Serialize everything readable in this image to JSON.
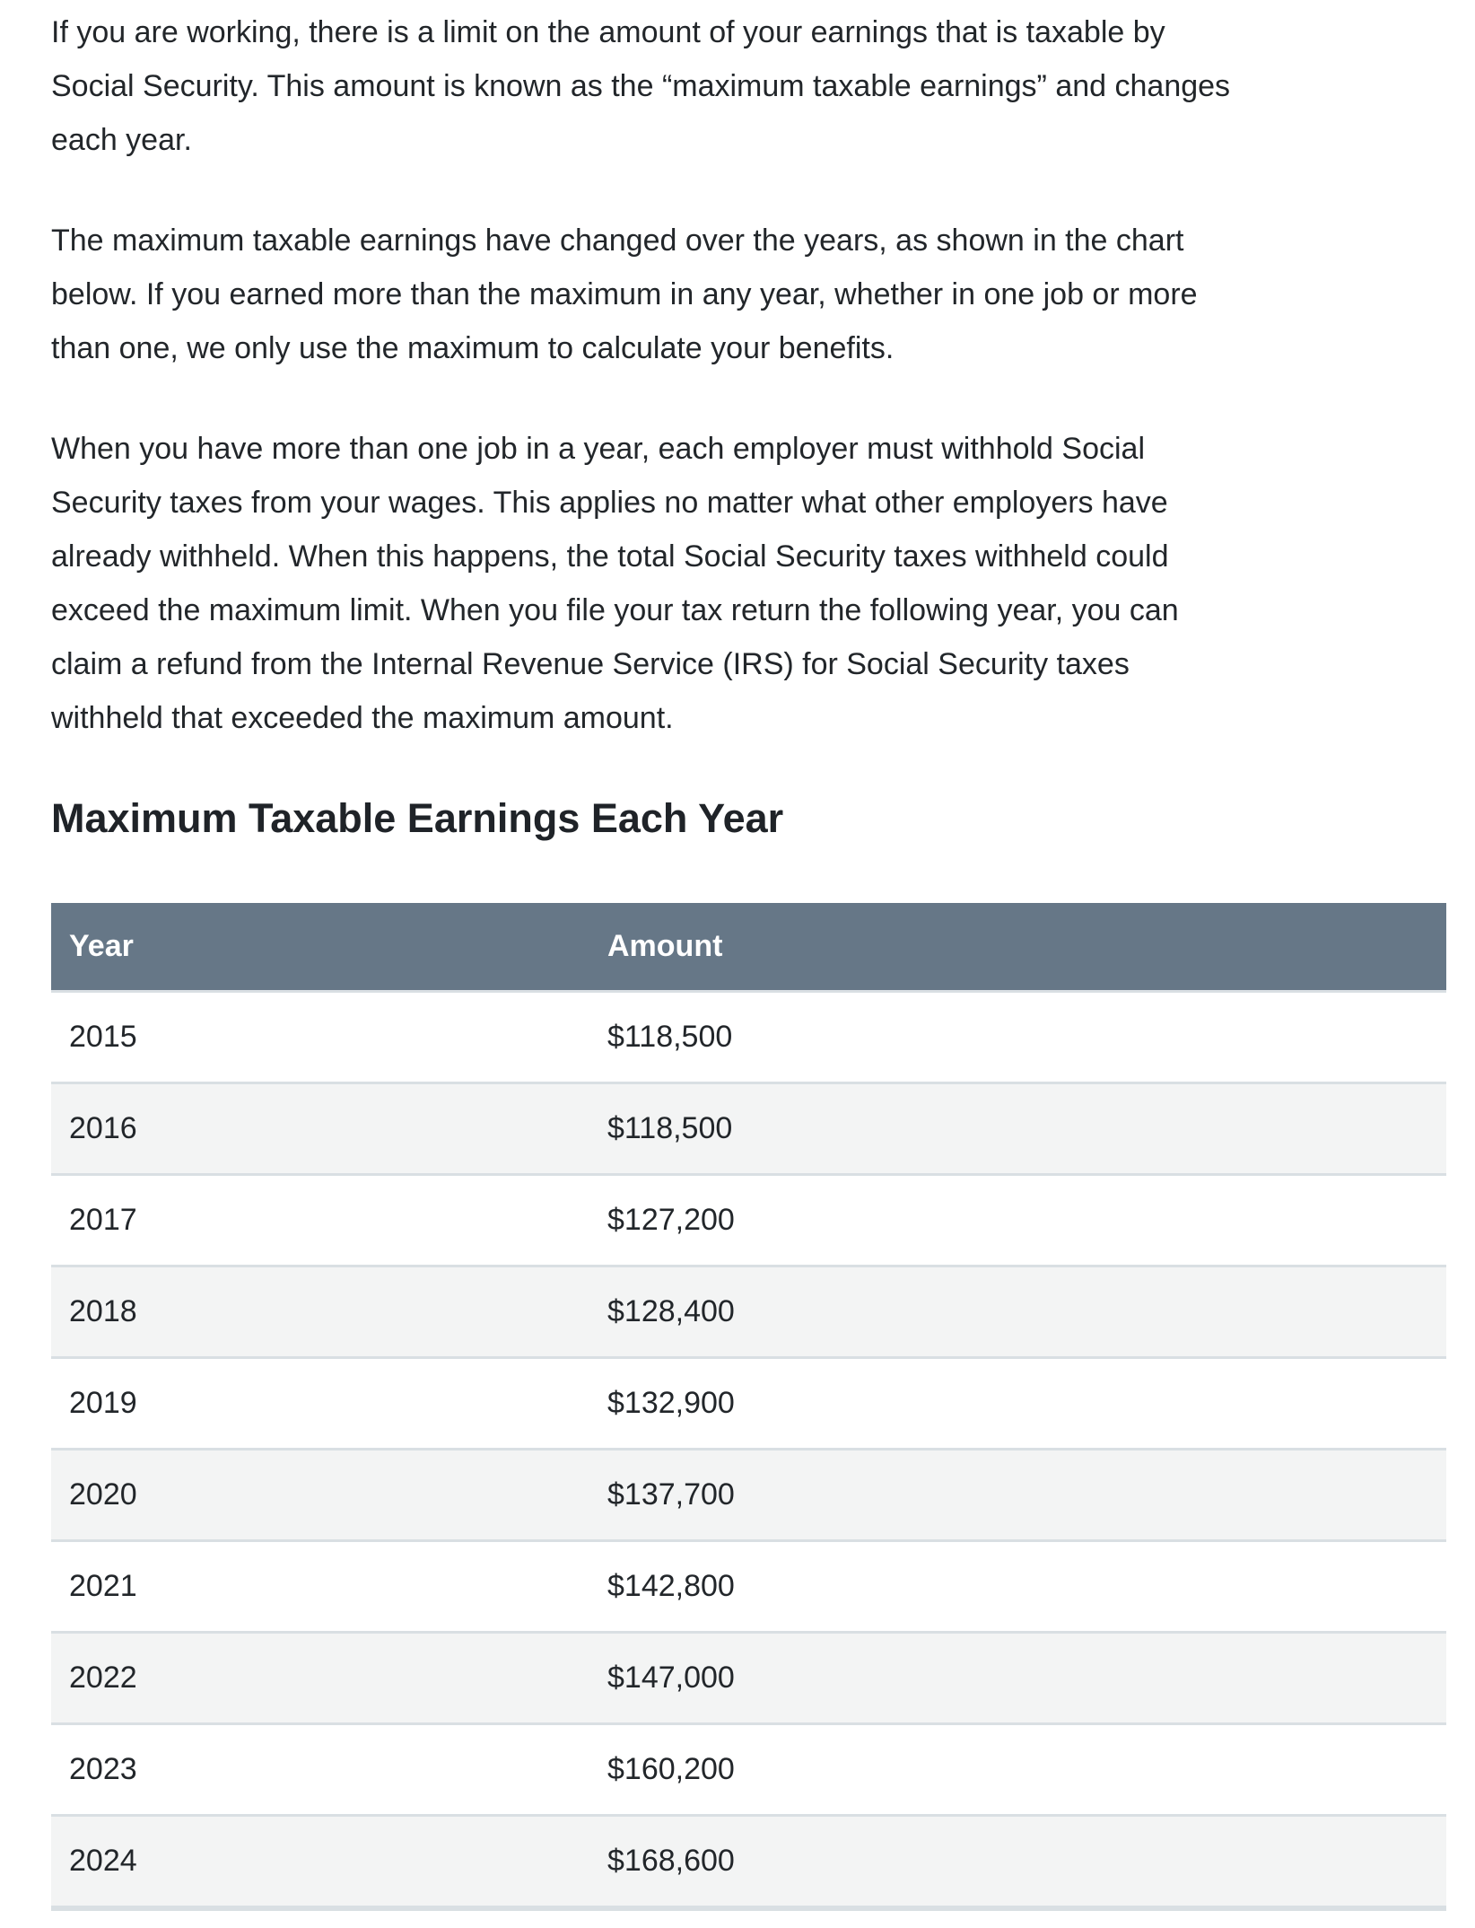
{
  "article": {
    "paragraphs": [
      "If you are working, there is a limit on the amount of your earnings that is taxable by\nSocial Security. This amount is known as the “maximum taxable earnings” and changes\neach year.",
      "The maximum taxable earnings have changed over the years, as shown in the chart\nbelow. If you earned more than the maximum in any year, whether in one job or more\nthan one, we only use the maximum to calculate your benefits.",
      "When you have more than one job in a year, each employer must withhold Social\nSecurity taxes from your wages. This applies no matter what other employers have\nalready withheld. When this happens, the total Social Security taxes withheld could\nexceed the maximum limit. When you file your tax return the following year, you can\nclaim a refund from the Internal Revenue Service (IRS) for Social Security taxes\nwithheld that exceeded the maximum amount."
    ],
    "heading": "Maximum Taxable Earnings Each Year"
  },
  "table": {
    "columns": [
      "Year",
      "Amount"
    ],
    "rows": [
      {
        "year": "2015",
        "amount": "$118,500"
      },
      {
        "year": "2016",
        "amount": "$118,500"
      },
      {
        "year": "2017",
        "amount": "$127,200"
      },
      {
        "year": "2018",
        "amount": "$128,400"
      },
      {
        "year": "2019",
        "amount": "$132,900"
      },
      {
        "year": "2020",
        "amount": "$137,700"
      },
      {
        "year": "2021",
        "amount": "$142,800"
      },
      {
        "year": "2022",
        "amount": "$147,000"
      },
      {
        "year": "2023",
        "amount": "$160,200"
      },
      {
        "year": "2024",
        "amount": "$168,600"
      }
    ]
  },
  "colors": {
    "header_background": "#667787",
    "header_text": "#ffffff",
    "stripe_background": "#f3f4f4",
    "row_border": "#d9dfe3",
    "body_text": "#22262a"
  }
}
